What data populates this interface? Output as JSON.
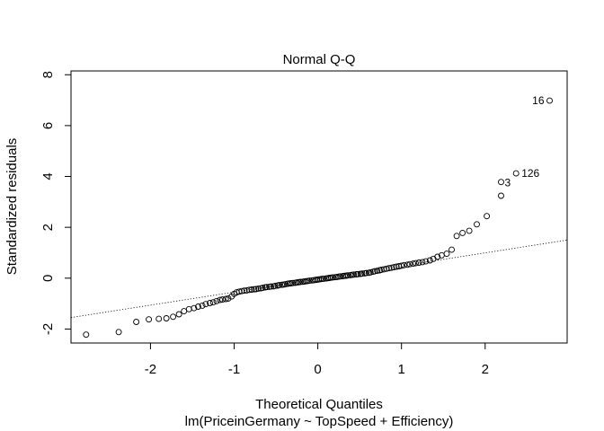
{
  "chart_data": {
    "type": "scatter",
    "title": "Normal Q-Q",
    "xlabel": "Theoretical Quantiles",
    "xlabel2": "lm(PriceinGermany ~ TopSpeed + Efficiency)",
    "ylabel": "Standardized residuals",
    "xlim": [
      -2.95,
      2.98
    ],
    "ylim": [
      -2.55,
      8.15
    ],
    "xticks": [
      -2,
      -1,
      0,
      1,
      2
    ],
    "yticks": [
      -2,
      0,
      2,
      4,
      6,
      8
    ],
    "grid": false,
    "reference_line": {
      "style": "dotted",
      "from": [
        -2.95,
        -1.55
      ],
      "to": [
        2.98,
        1.5
      ]
    },
    "labeled_points": [
      {
        "label": "16",
        "x": 2.77,
        "y": 6.98
      },
      {
        "label": "126",
        "x": 2.37,
        "y": 4.12
      },
      {
        "label": "3",
        "x": 2.19,
        "y": 3.78
      }
    ],
    "points": [
      [
        -2.77,
        -2.22
      ],
      [
        -2.38,
        -2.12
      ],
      [
        -2.17,
        -1.72
      ],
      [
        -2.02,
        -1.62
      ],
      [
        -1.9,
        -1.6
      ],
      [
        -1.81,
        -1.58
      ],
      [
        -1.73,
        -1.52
      ],
      [
        -1.66,
        -1.42
      ],
      [
        -1.6,
        -1.3
      ],
      [
        -1.54,
        -1.22
      ],
      [
        -1.48,
        -1.18
      ],
      [
        -1.43,
        -1.12
      ],
      [
        -1.38,
        -1.08
      ],
      [
        -1.34,
        -1.02
      ],
      [
        -1.29,
        -0.98
      ],
      [
        -1.25,
        -0.95
      ],
      [
        -1.21,
        -0.9
      ],
      [
        -1.17,
        -0.86
      ],
      [
        -1.14,
        -0.84
      ],
      [
        -1.1,
        -0.82
      ],
      [
        -1.07,
        -0.8
      ],
      [
        -1.03,
        -0.72
      ],
      [
        -1.0,
        -0.62
      ],
      [
        -0.97,
        -0.56
      ],
      [
        -0.94,
        -0.53
      ],
      [
        -0.91,
        -0.51
      ],
      [
        -0.88,
        -0.49
      ],
      [
        -0.85,
        -0.48
      ],
      [
        -0.82,
        -0.46
      ],
      [
        -0.79,
        -0.45
      ],
      [
        -0.76,
        -0.44
      ],
      [
        -0.74,
        -0.43
      ],
      [
        -0.71,
        -0.41
      ],
      [
        -0.68,
        -0.4
      ],
      [
        -0.66,
        -0.38
      ],
      [
        -0.63,
        -0.36
      ],
      [
        -0.61,
        -0.35
      ],
      [
        -0.58,
        -0.34
      ],
      [
        -0.56,
        -0.33
      ],
      [
        -0.53,
        -0.32
      ],
      [
        -0.51,
        -0.3
      ],
      [
        -0.48,
        -0.29
      ],
      [
        -0.46,
        -0.27
      ],
      [
        -0.43,
        -0.26
      ],
      [
        -0.41,
        -0.25
      ],
      [
        -0.39,
        -0.24
      ],
      [
        -0.36,
        -0.22
      ],
      [
        -0.34,
        -0.21
      ],
      [
        -0.32,
        -0.2
      ],
      [
        -0.3,
        -0.19
      ],
      [
        -0.27,
        -0.18
      ],
      [
        -0.25,
        -0.17
      ],
      [
        -0.23,
        -0.16
      ],
      [
        -0.21,
        -0.15
      ],
      [
        -0.18,
        -0.14
      ],
      [
        -0.16,
        -0.13
      ],
      [
        -0.14,
        -0.12
      ],
      [
        -0.12,
        -0.11
      ],
      [
        -0.1,
        -0.1
      ],
      [
        -0.07,
        -0.09
      ],
      [
        -0.05,
        -0.08
      ],
      [
        -0.03,
        -0.07
      ],
      [
        -0.01,
        -0.06
      ],
      [
        0.01,
        -0.05
      ],
      [
        0.03,
        -0.04
      ],
      [
        0.05,
        -0.03
      ],
      [
        0.07,
        -0.02
      ],
      [
        0.1,
        -0.01
      ],
      [
        0.12,
        0.0
      ],
      [
        0.14,
        0.01
      ],
      [
        0.16,
        0.02
      ],
      [
        0.18,
        0.03
      ],
      [
        0.21,
        0.04
      ],
      [
        0.23,
        0.05
      ],
      [
        0.25,
        0.06
      ],
      [
        0.27,
        0.07
      ],
      [
        0.3,
        0.08
      ],
      [
        0.32,
        0.09
      ],
      [
        0.34,
        0.1
      ],
      [
        0.36,
        0.11
      ],
      [
        0.39,
        0.12
      ],
      [
        0.41,
        0.13
      ],
      [
        0.43,
        0.14
      ],
      [
        0.46,
        0.15
      ],
      [
        0.48,
        0.16
      ],
      [
        0.51,
        0.17
      ],
      [
        0.53,
        0.18
      ],
      [
        0.56,
        0.19
      ],
      [
        0.58,
        0.2
      ],
      [
        0.61,
        0.21
      ],
      [
        0.63,
        0.23
      ],
      [
        0.66,
        0.25
      ],
      [
        0.68,
        0.27
      ],
      [
        0.71,
        0.29
      ],
      [
        0.74,
        0.31
      ],
      [
        0.76,
        0.33
      ],
      [
        0.79,
        0.35
      ],
      [
        0.82,
        0.37
      ],
      [
        0.85,
        0.39
      ],
      [
        0.88,
        0.41
      ],
      [
        0.91,
        0.43
      ],
      [
        0.94,
        0.45
      ],
      [
        0.97,
        0.47
      ],
      [
        1.0,
        0.49
      ],
      [
        1.03,
        0.51
      ],
      [
        1.07,
        0.53
      ],
      [
        1.1,
        0.55
      ],
      [
        1.14,
        0.57
      ],
      [
        1.17,
        0.59
      ],
      [
        1.21,
        0.61
      ],
      [
        1.25,
        0.63
      ],
      [
        1.29,
        0.66
      ],
      [
        1.34,
        0.7
      ],
      [
        1.38,
        0.76
      ],
      [
        1.43,
        0.84
      ],
      [
        1.48,
        0.9
      ],
      [
        1.54,
        0.96
      ],
      [
        1.6,
        1.12
      ],
      [
        1.66,
        1.66
      ],
      [
        1.73,
        1.78
      ],
      [
        1.81,
        1.86
      ],
      [
        1.9,
        2.12
      ],
      [
        2.02,
        2.44
      ],
      [
        2.19,
        3.24
      ],
      [
        2.19,
        3.78
      ],
      [
        2.37,
        4.12
      ],
      [
        2.77,
        6.98
      ]
    ]
  }
}
